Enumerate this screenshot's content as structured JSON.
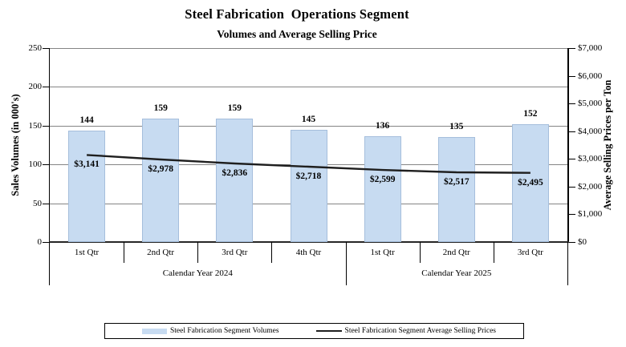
{
  "chart": {
    "title": "Steel Fabrication  Operations Segment",
    "subtitle": "Volumes and Average Selling Price",
    "left_axis": {
      "title": "Sales Volumes (in 000's)",
      "min": 0,
      "max": 250,
      "step": 50
    },
    "right_axis": {
      "title": "Average Selling Prices per Ton",
      "min": 0,
      "max": 7000,
      "step": 1000,
      "prefix": "$"
    },
    "legend": {
      "volumes": "Steel Fabrication Segment Volumes",
      "prices": "Steel Fabrication Segment Average Selling Prices"
    },
    "colors": {
      "bar_fill": "#c7dbf1",
      "line": "#1f1f1f",
      "gridline": "#848484",
      "axis": "#000000"
    }
  },
  "chart_data": {
    "type": "bar+line",
    "title": "Steel Fabrication Operations Segment",
    "subtitle": "Volumes and Average Selling Price",
    "categories": [
      "1st Qtr",
      "2nd Qtr",
      "3rd Qtr",
      "4th Qtr",
      "1st Qtr",
      "2nd Qtr",
      "3rd Qtr"
    ],
    "groups": [
      {
        "label": "Calendar Year 2024",
        "span": 4
      },
      {
        "label": "Calendar Year 2025",
        "span": 3
      }
    ],
    "series": [
      {
        "name": "Steel Fabrication Segment Volumes",
        "type": "bar",
        "axis": "left",
        "values": [
          144,
          159,
          159,
          145,
          136,
          135,
          152
        ]
      },
      {
        "name": "Steel Fabrication Segment Average Selling Prices",
        "type": "line",
        "axis": "right",
        "values": [
          3141,
          2978,
          2836,
          2718,
          2599,
          2517,
          2495
        ],
        "labels": [
          "$3,141",
          "$2,978",
          "$2,836",
          "$2,718",
          "$2,599",
          "$2,517",
          "$2,495"
        ]
      }
    ],
    "ylabel_left": "Sales Volumes (in 000's)",
    "ylabel_right": "Average Selling Prices per Ton",
    "ylim_left": [
      0,
      250
    ],
    "ylim_right": [
      0,
      7000
    ],
    "grid": true,
    "legend_position": "bottom"
  }
}
